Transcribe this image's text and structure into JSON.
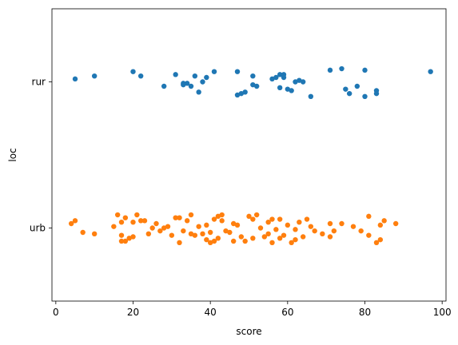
{
  "chart_data": {
    "type": "strip",
    "xlabel": "score",
    "ylabel": "loc",
    "xlim": [
      -1,
      101
    ],
    "xticks": [
      0,
      20,
      40,
      60,
      80,
      100
    ],
    "categories": [
      "rur",
      "urb"
    ],
    "grid": false,
    "series": [
      {
        "category": "rur",
        "color": "#1f77b4",
        "points": [
          [
            5,
            -0.02
          ],
          [
            10,
            -0.04
          ],
          [
            20,
            -0.07
          ],
          [
            22,
            -0.04
          ],
          [
            28,
            0.03
          ],
          [
            31,
            -0.05
          ],
          [
            33,
            0.01
          ],
          [
            33,
            0.02
          ],
          [
            34,
            0.01
          ],
          [
            35,
            0.03
          ],
          [
            36,
            -0.04
          ],
          [
            37,
            0.07
          ],
          [
            38,
            0.0
          ],
          [
            39,
            -0.03
          ],
          [
            41,
            -0.07
          ],
          [
            47,
            0.09
          ],
          [
            47,
            -0.07
          ],
          [
            48,
            0.08
          ],
          [
            49,
            0.07
          ],
          [
            51,
            -0.04
          ],
          [
            51,
            0.02
          ],
          [
            52,
            0.03
          ],
          [
            56,
            -0.02
          ],
          [
            57,
            -0.03
          ],
          [
            58,
            0.04
          ],
          [
            58,
            -0.05
          ],
          [
            59,
            -0.05
          ],
          [
            59,
            -0.03
          ],
          [
            60,
            0.05
          ],
          [
            61,
            0.06
          ],
          [
            62,
            0.0
          ],
          [
            63,
            -0.01
          ],
          [
            64,
            0.0
          ],
          [
            66,
            0.1
          ],
          [
            71,
            -0.08
          ],
          [
            74,
            -0.09
          ],
          [
            75,
            0.05
          ],
          [
            76,
            0.08
          ],
          [
            78,
            0.03
          ],
          [
            80,
            0.1
          ],
          [
            80,
            -0.08
          ],
          [
            83,
            0.06
          ],
          [
            83,
            0.08
          ],
          [
            97,
            -0.07
          ]
        ]
      },
      {
        "category": "urb",
        "color": "#ff7f0e",
        "points": [
          [
            4,
            -0.03
          ],
          [
            5,
            -0.05
          ],
          [
            7,
            0.03
          ],
          [
            10,
            0.04
          ],
          [
            15,
            -0.01
          ],
          [
            16,
            -0.09
          ],
          [
            17,
            0.09
          ],
          [
            17,
            0.05
          ],
          [
            17,
            -0.04
          ],
          [
            18,
            -0.07
          ],
          [
            18,
            0.09
          ],
          [
            19,
            0.07
          ],
          [
            20,
            0.06
          ],
          [
            20,
            -0.04
          ],
          [
            21,
            -0.09
          ],
          [
            22,
            -0.05
          ],
          [
            23,
            -0.05
          ],
          [
            24,
            0.04
          ],
          [
            25,
            0.0
          ],
          [
            26,
            -0.03
          ],
          [
            27,
            0.02
          ],
          [
            28,
            0.0
          ],
          [
            29,
            -0.01
          ],
          [
            30,
            0.05
          ],
          [
            31,
            -0.07
          ],
          [
            32,
            -0.07
          ],
          [
            32,
            0.1
          ],
          [
            33,
            0.02
          ],
          [
            34,
            -0.05
          ],
          [
            35,
            0.04
          ],
          [
            35,
            -0.09
          ],
          [
            36,
            0.05
          ],
          [
            37,
            -0.01
          ],
          [
            38,
            0.04
          ],
          [
            39,
            0.08
          ],
          [
            39,
            -0.02
          ],
          [
            40,
            0.1
          ],
          [
            40,
            0.03
          ],
          [
            41,
            -0.06
          ],
          [
            41,
            0.09
          ],
          [
            42,
            -0.08
          ],
          [
            42,
            0.07
          ],
          [
            43,
            -0.05
          ],
          [
            43,
            -0.09
          ],
          [
            44,
            0.02
          ],
          [
            45,
            0.03
          ],
          [
            46,
            -0.03
          ],
          [
            46,
            0.09
          ],
          [
            47,
            -0.02
          ],
          [
            48,
            0.06
          ],
          [
            49,
            0.09
          ],
          [
            50,
            -0.08
          ],
          [
            51,
            0.07
          ],
          [
            51,
            -0.06
          ],
          [
            52,
            -0.09
          ],
          [
            53,
            0.0
          ],
          [
            54,
            0.06
          ],
          [
            55,
            0.04
          ],
          [
            55,
            -0.04
          ],
          [
            56,
            0.1
          ],
          [
            56,
            -0.06
          ],
          [
            57,
            0.01
          ],
          [
            58,
            0.07
          ],
          [
            58,
            -0.06
          ],
          [
            59,
            0.05
          ],
          [
            60,
            -0.02
          ],
          [
            61,
            0.1
          ],
          [
            62,
            0.01
          ],
          [
            62,
            0.08
          ],
          [
            63,
            -0.04
          ],
          [
            64,
            0.06
          ],
          [
            65,
            -0.06
          ],
          [
            66,
            -0.01
          ],
          [
            67,
            0.02
          ],
          [
            69,
            0.04
          ],
          [
            71,
            0.06
          ],
          [
            71,
            -0.03
          ],
          [
            72,
            0.02
          ],
          [
            74,
            -0.03
          ],
          [
            77,
            -0.01
          ],
          [
            79,
            0.02
          ],
          [
            81,
            0.05
          ],
          [
            81,
            -0.08
          ],
          [
            83,
            0.1
          ],
          [
            84,
            0.08
          ],
          [
            84,
            -0.02
          ],
          [
            85,
            -0.05
          ],
          [
            88,
            -0.03
          ]
        ]
      }
    ]
  }
}
